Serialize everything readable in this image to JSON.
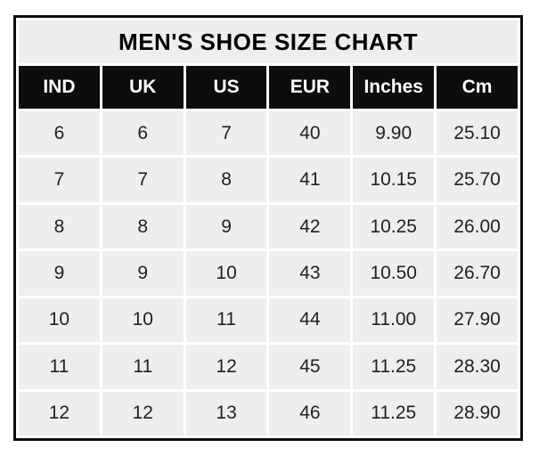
{
  "title": "MEN'S SHOE SIZE CHART",
  "chart_data": {
    "type": "table",
    "title": "MEN'S SHOE SIZE CHART",
    "columns": [
      "IND",
      "UK",
      "US",
      "EUR",
      "Inches",
      "Cm"
    ],
    "rows": [
      [
        "6",
        "6",
        "7",
        "40",
        "9.90",
        "25.10"
      ],
      [
        "7",
        "7",
        "8",
        "41",
        "10.15",
        "25.70"
      ],
      [
        "8",
        "8",
        "9",
        "42",
        "10.25",
        "26.00"
      ],
      [
        "9",
        "9",
        "10",
        "43",
        "10.50",
        "26.70"
      ],
      [
        "10",
        "10",
        "11",
        "44",
        "11.00",
        "27.90"
      ],
      [
        "11",
        "11",
        "12",
        "45",
        "11.25",
        "28.30"
      ],
      [
        "12",
        "12",
        "13",
        "46",
        "11.25",
        "28.90"
      ]
    ]
  },
  "colors": {
    "frame_border": "#0d0d0d",
    "header_background": "#0d0d0d",
    "header_text": "#ffffff",
    "cell_background": "#efeeee",
    "gridline": "#ffffff",
    "data_text": "#212121",
    "title_text": "#000000"
  }
}
